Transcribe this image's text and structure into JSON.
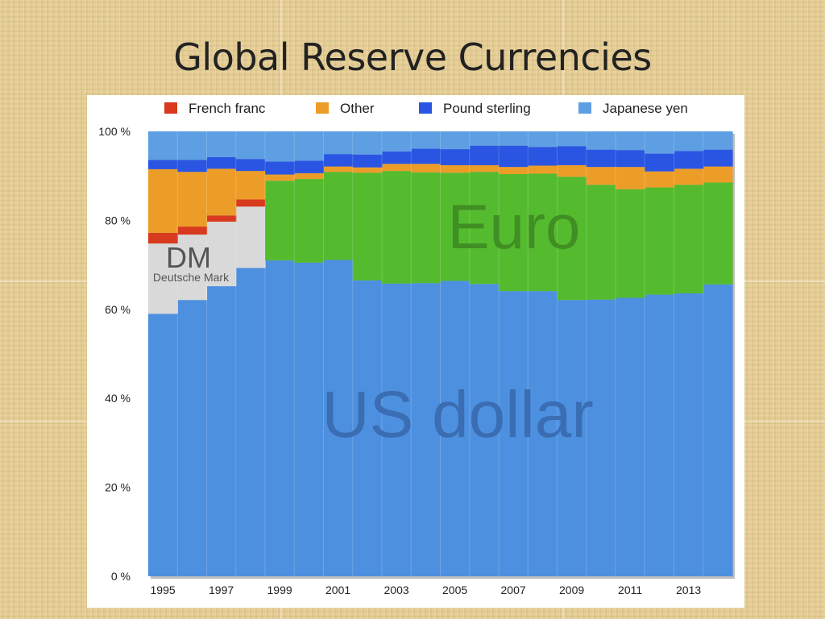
{
  "slide": {
    "title": "Global Reserve Currencies"
  },
  "chart_data": {
    "type": "area",
    "x": [
      1995,
      1996,
      1997,
      1998,
      1999,
      2000,
      2001,
      2002,
      2003,
      2004,
      2005,
      2006,
      2007,
      2008,
      2009,
      2010,
      2011,
      2012,
      2013,
      2014
    ],
    "x_tick_labels": [
      "1995",
      "1997",
      "1999",
      "2001",
      "2003",
      "2005",
      "2007",
      "2009",
      "2011",
      "2013"
    ],
    "y_tick_labels": [
      "0 %",
      "20 %",
      "40 %",
      "60 %",
      "80 %",
      "100 %"
    ],
    "ylim": [
      0,
      100
    ],
    "stacked": true,
    "legend": [
      "French franc",
      "Other",
      "Pound sterling",
      "Japanese yen"
    ],
    "legend_position": "top",
    "series": [
      {
        "name": "US dollar",
        "label": "US dollar",
        "color": "#4d90e0",
        "values": [
          59.0,
          62.1,
          65.2,
          69.3,
          71.0,
          70.5,
          71.1,
          66.5,
          65.8,
          65.9,
          66.4,
          65.7,
          64.1,
          64.1,
          62.1,
          62.2,
          62.6,
          63.3,
          63.6,
          65.6
        ]
      },
      {
        "name": "Deutsche Mark",
        "label": "DM",
        "sublabel": "Deutsche Mark",
        "color": "#d9d9d9",
        "values": [
          15.8,
          14.7,
          14.5,
          13.8,
          0,
          0,
          0,
          0,
          0,
          0,
          0,
          0,
          0,
          0,
          0,
          0,
          0,
          0,
          0,
          0
        ]
      },
      {
        "name": "French franc",
        "color": "#d83a1e",
        "values": [
          2.4,
          1.8,
          1.4,
          1.6,
          0,
          0,
          0,
          0,
          0,
          0,
          0,
          0,
          0,
          0,
          0,
          0,
          0,
          0,
          0,
          0
        ]
      },
      {
        "name": "Euro",
        "label": "Euro",
        "color": "#55bb2e",
        "values": [
          0,
          0,
          0,
          0,
          17.9,
          18.8,
          19.8,
          24.2,
          25.3,
          24.9,
          24.3,
          25.2,
          26.3,
          26.4,
          27.7,
          25.8,
          24.4,
          24.1,
          24.4,
          22.9
        ]
      },
      {
        "name": "Other",
        "color": "#ec9d28",
        "values": [
          14.3,
          12.3,
          10.5,
          6.4,
          1.4,
          1.3,
          1.2,
          1.2,
          1.6,
          1.9,
          1.7,
          1.5,
          1.6,
          1.8,
          2.6,
          4.0,
          5.0,
          3.6,
          3.6,
          3.6
        ]
      },
      {
        "name": "Pound sterling",
        "color": "#2a55e3",
        "values": [
          2.1,
          2.7,
          2.6,
          2.7,
          2.9,
          2.8,
          2.8,
          2.9,
          2.8,
          3.4,
          3.6,
          4.4,
          4.8,
          4.2,
          4.3,
          3.9,
          3.8,
          4.0,
          4.0,
          3.8
        ]
      },
      {
        "name": "Japanese yen",
        "color": "#5e9fe3",
        "values": [
          6.4,
          6.4,
          5.8,
          6.2,
          6.8,
          6.6,
          5.1,
          5.2,
          4.5,
          3.9,
          4.0,
          3.2,
          3.2,
          3.5,
          3.3,
          4.1,
          4.2,
          5.0,
          4.4,
          4.1
        ]
      }
    ]
  }
}
